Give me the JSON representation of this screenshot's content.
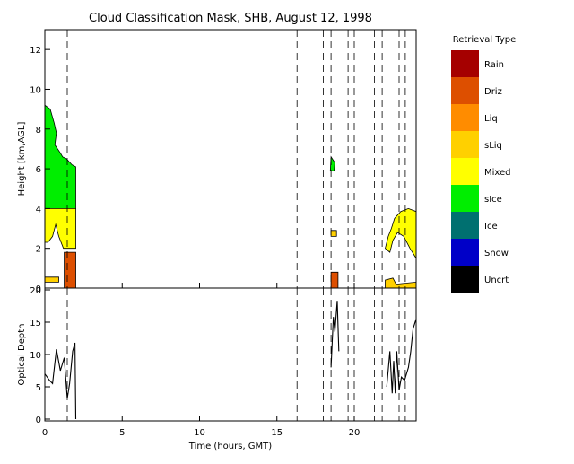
{
  "chart_data": [
    {
      "type": "heatmap",
      "title": "Cloud Classification Mask, SHB, August 12, 1998",
      "xlabel": "",
      "ylabel": "Height [km,AGL]",
      "xlim": [
        0,
        24
      ],
      "ylim": [
        0,
        13
      ],
      "xticks": [
        "0",
        "5",
        "10",
        "15",
        "20"
      ],
      "yticks": [
        "0",
        "2",
        "4",
        "6",
        "8",
        "10",
        "12"
      ],
      "legend": {
        "title": "Retrieval Type",
        "position": "right",
        "entries": [
          {
            "label": "Rain",
            "color": "#a50000"
          },
          {
            "label": "Driz",
            "color": "#dd4f00"
          },
          {
            "label": "Liq",
            "color": "#ff8c00"
          },
          {
            "label": "sLiq",
            "color": "#ffd000"
          },
          {
            "label": "Mixed",
            "color": "#ffff00"
          },
          {
            "label": "sIce",
            "color": "#00ee00"
          },
          {
            "label": "Ice",
            "color": "#007070"
          },
          {
            "label": "Snow",
            "color": "#0000c8"
          },
          {
            "label": "Uncrt",
            "color": "#000000"
          }
        ]
      },
      "dashed_times": [
        1.45,
        16.3,
        18.0,
        18.5,
        19.6,
        20.0,
        21.3,
        21.8,
        22.9,
        23.3
      ],
      "regions": [
        {
          "class": "sIce",
          "color": "#00ee00",
          "points": [
            [
              0,
              4
            ],
            [
              0,
              9.2
            ],
            [
              0.35,
              9.0
            ],
            [
              0.6,
              8.3
            ],
            [
              0.75,
              7.8
            ],
            [
              0.65,
              7.2
            ],
            [
              1.0,
              6.8
            ],
            [
              1.15,
              6.6
            ],
            [
              1.4,
              6.5
            ],
            [
              1.75,
              6.2
            ],
            [
              2.0,
              6.1
            ],
            [
              2.0,
              4
            ]
          ]
        },
        {
          "class": "Mixed",
          "color": "#ffff00",
          "points": [
            [
              0,
              2.3
            ],
            [
              0,
              4
            ],
            [
              2.0,
              4
            ],
            [
              2.0,
              2.0
            ],
            [
              1.2,
              2.0
            ],
            [
              0.9,
              2.6
            ],
            [
              0.7,
              3.2
            ],
            [
              0.5,
              2.6
            ],
            [
              0.2,
              2.3
            ]
          ]
        },
        {
          "class": "Driz",
          "color": "#dd4f00",
          "points": [
            [
              1.25,
              0
            ],
            [
              1.25,
              1.8
            ],
            [
              2.0,
              1.8
            ],
            [
              2.0,
              0
            ]
          ]
        },
        {
          "class": "sLiq",
          "color": "#ffd000",
          "points": [
            [
              0,
              0.3
            ],
            [
              0,
              0.55
            ],
            [
              0.9,
              0.55
            ],
            [
              0.9,
              0.3
            ]
          ]
        },
        {
          "class": "sIce",
          "color": "#00ee00",
          "points": [
            [
              18.45,
              5.9
            ],
            [
              18.5,
              6.6
            ],
            [
              18.75,
              6.3
            ],
            [
              18.7,
              5.9
            ]
          ]
        },
        {
          "class": "sLiq",
          "color": "#ffd000",
          "points": [
            [
              18.5,
              2.6
            ],
            [
              18.5,
              2.9
            ],
            [
              18.85,
              2.9
            ],
            [
              18.85,
              2.6
            ]
          ]
        },
        {
          "class": "Driz",
          "color": "#dd4f00",
          "points": [
            [
              18.5,
              0
            ],
            [
              18.5,
              0.8
            ],
            [
              18.95,
              0.8
            ],
            [
              18.95,
              0
            ]
          ]
        },
        {
          "class": "Mixed",
          "color": "#ffff00",
          "points": [
            [
              22.0,
              2.0
            ],
            [
              22.2,
              2.6
            ],
            [
              22.4,
              3.0
            ],
            [
              22.6,
              3.5
            ],
            [
              23.0,
              3.85
            ],
            [
              23.5,
              4.0
            ],
            [
              24,
              3.85
            ],
            [
              24,
              1.5
            ],
            [
              23.6,
              2.0
            ],
            [
              23.2,
              2.6
            ],
            [
              22.8,
              2.8
            ],
            [
              22.5,
              2.4
            ],
            [
              22.3,
              1.8
            ]
          ]
        },
        {
          "class": "sLiq",
          "color": "#ffd000",
          "points": [
            [
              22.0,
              0
            ],
            [
              22.0,
              0.4
            ],
            [
              22.5,
              0.5
            ],
            [
              22.7,
              0.2
            ],
            [
              24,
              0.3
            ],
            [
              24,
              0
            ]
          ]
        }
      ]
    },
    {
      "type": "line",
      "title": "",
      "xlabel": "Time (hours, GMT)",
      "ylabel": "Optical Depth",
      "xlim": [
        0,
        24
      ],
      "ylim": [
        0,
        20
      ],
      "xticks": [
        "0",
        "5",
        "10",
        "15",
        "20"
      ],
      "yticks": [
        "0",
        "5",
        "10",
        "15",
        "20"
      ],
      "series": [
        {
          "values": [
            [
              0,
              7
            ],
            [
              0.3,
              6
            ],
            [
              0.5,
              5.5
            ],
            [
              0.75,
              10.8
            ],
            [
              1.0,
              7.5
            ],
            [
              1.25,
              9.5
            ],
            [
              1.45,
              3.2
            ],
            [
              1.6,
              5.5
            ],
            [
              1.8,
              10.5
            ],
            [
              1.95,
              11.8
            ],
            [
              2.0,
              0
            ]
          ]
        },
        {
          "values": [
            [
              18.5,
              8
            ],
            [
              18.65,
              15.8
            ],
            [
              18.75,
              13.5
            ],
            [
              18.9,
              18.3
            ],
            [
              19.0,
              10.5
            ]
          ]
        },
        {
          "values": [
            [
              22.1,
              5
            ],
            [
              22.3,
              10.5
            ],
            [
              22.45,
              4
            ],
            [
              22.55,
              9
            ],
            [
              22.65,
              4
            ],
            [
              22.75,
              10.5
            ],
            [
              22.9,
              4.5
            ],
            [
              23.05,
              6.5
            ],
            [
              23.25,
              6
            ],
            [
              23.5,
              8
            ],
            [
              23.65,
              10.5
            ],
            [
              23.8,
              14
            ],
            [
              24,
              15.5
            ]
          ]
        }
      ]
    }
  ]
}
